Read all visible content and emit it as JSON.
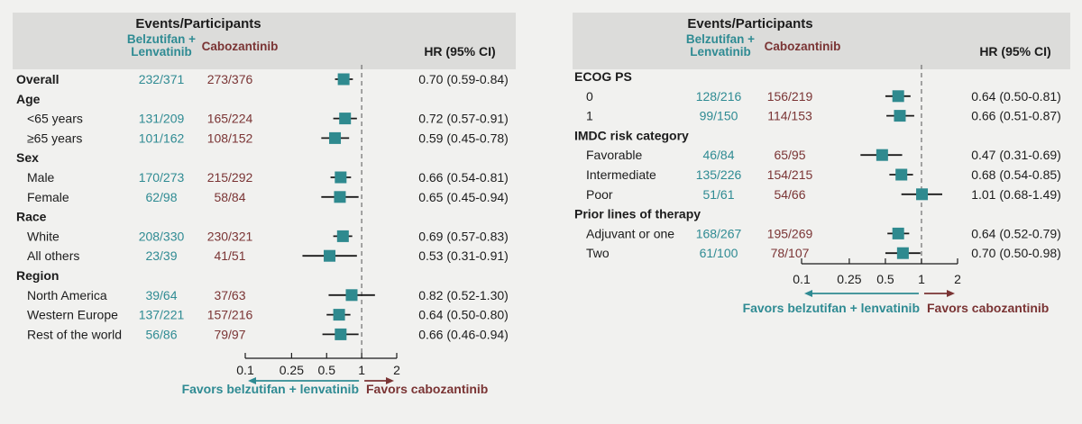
{
  "colors": {
    "belzutifan": "#2f8b93",
    "cabozantinib": "#7a3434",
    "marker": "#2f8a8f",
    "header_band": "#dcdcda",
    "text": "#1c1c1c"
  },
  "chart_data": [
    {
      "type": "forest",
      "header": {
        "events_participants": "Events/Participants",
        "arm1": [
          "Belzutifan +",
          "Lenvatinib"
        ],
        "arm2": "Cabozantinib",
        "hr": "HR (95% CI)"
      },
      "x_scale": "log",
      "xlim": [
        0.1,
        2
      ],
      "ticks": [
        0.1,
        0.25,
        0.5,
        1,
        2
      ],
      "tick_labels": [
        "0.1",
        "0.25",
        "0.5",
        "1",
        "2"
      ],
      "reference_line": 1,
      "favors_left": "Favors belzutifan + lenvatinib",
      "favors_right": "Favors cabozantinib",
      "rows": [
        {
          "kind": "category",
          "label": "Overall",
          "arm1": "232/371",
          "arm2": "273/376",
          "hr": 0.7,
          "lo": 0.59,
          "hi": 0.84,
          "ci": "0.70 (0.59-0.84)"
        },
        {
          "kind": "heading",
          "label": "Age"
        },
        {
          "kind": "sub",
          "label": "<65 years",
          "arm1": "131/209",
          "arm2": "165/224",
          "hr": 0.72,
          "lo": 0.57,
          "hi": 0.91,
          "ci": "0.72 (0.57-0.91)"
        },
        {
          "kind": "sub",
          "label": "≥65 years",
          "arm1": "101/162",
          "arm2": "108/152",
          "hr": 0.59,
          "lo": 0.45,
          "hi": 0.78,
          "ci": "0.59 (0.45-0.78)"
        },
        {
          "kind": "heading",
          "label": "Sex"
        },
        {
          "kind": "sub",
          "label": "Male",
          "arm1": "170/273",
          "arm2": "215/292",
          "hr": 0.66,
          "lo": 0.54,
          "hi": 0.81,
          "ci": "0.66 (0.54-0.81)"
        },
        {
          "kind": "sub",
          "label": "Female",
          "arm1": "62/98",
          "arm2": "58/84",
          "hr": 0.65,
          "lo": 0.45,
          "hi": 0.94,
          "ci": "0.65 (0.45-0.94)"
        },
        {
          "kind": "heading",
          "label": "Race"
        },
        {
          "kind": "sub",
          "label": "White",
          "arm1": "208/330",
          "arm2": "230/321",
          "hr": 0.69,
          "lo": 0.57,
          "hi": 0.83,
          "ci": "0.69 (0.57-0.83)"
        },
        {
          "kind": "sub",
          "label": "All others",
          "arm1": "23/39",
          "arm2": "41/51",
          "hr": 0.53,
          "lo": 0.31,
          "hi": 0.91,
          "ci": "0.53 (0.31-0.91)"
        },
        {
          "kind": "heading",
          "label": "Region"
        },
        {
          "kind": "sub",
          "label": "North America",
          "arm1": "39/64",
          "arm2": "37/63",
          "hr": 0.82,
          "lo": 0.52,
          "hi": 1.3,
          "ci": "0.82 (0.52-1.30)"
        },
        {
          "kind": "sub",
          "label": "Western Europe",
          "arm1": "137/221",
          "arm2": "157/216",
          "hr": 0.64,
          "lo": 0.5,
          "hi": 0.8,
          "ci": "0.64 (0.50-0.80)"
        },
        {
          "kind": "sub",
          "label": "Rest of the world",
          "arm1": "56/86",
          "arm2": "79/97",
          "hr": 0.66,
          "lo": 0.46,
          "hi": 0.94,
          "ci": "0.66 (0.46-0.94)"
        }
      ]
    },
    {
      "type": "forest",
      "header": {
        "events_participants": "Events/Participants",
        "arm1": [
          "Belzutifan +",
          "Lenvatinib"
        ],
        "arm2": "Cabozantinib",
        "hr": "HR (95% CI)"
      },
      "x_scale": "log",
      "xlim": [
        0.1,
        2
      ],
      "ticks": [
        0.1,
        0.25,
        0.5,
        1,
        2
      ],
      "tick_labels": [
        "0.1",
        "0.25",
        "0.5",
        "1",
        "2"
      ],
      "reference_line": 1,
      "favors_left": "Favors belzutifan + lenvatinib",
      "favors_right": "Favors cabozantinib",
      "rows": [
        {
          "kind": "heading",
          "label": "ECOG PS"
        },
        {
          "kind": "sub",
          "label": "0",
          "arm1": "128/216",
          "arm2": "156/219",
          "hr": 0.64,
          "lo": 0.5,
          "hi": 0.81,
          "ci": "0.64 (0.50-0.81)"
        },
        {
          "kind": "sub",
          "label": "1",
          "arm1": "99/150",
          "arm2": "114/153",
          "hr": 0.66,
          "lo": 0.51,
          "hi": 0.87,
          "ci": "0.66 (0.51-0.87)"
        },
        {
          "kind": "heading",
          "label": "IMDC risk category"
        },
        {
          "kind": "sub",
          "label": "Favorable",
          "arm1": "46/84",
          "arm2": "65/95",
          "hr": 0.47,
          "lo": 0.31,
          "hi": 0.69,
          "ci": "0.47 (0.31-0.69)"
        },
        {
          "kind": "sub",
          "label": "Intermediate",
          "arm1": "135/226",
          "arm2": "154/215",
          "hr": 0.68,
          "lo": 0.54,
          "hi": 0.85,
          "ci": "0.68 (0.54-0.85)"
        },
        {
          "kind": "sub",
          "label": "Poor",
          "arm1": "51/61",
          "arm2": "54/66",
          "hr": 1.01,
          "lo": 0.68,
          "hi": 1.49,
          "ci": "1.01 (0.68-1.49)"
        },
        {
          "kind": "heading",
          "label": "Prior lines of therapy"
        },
        {
          "kind": "sub",
          "label": "Adjuvant or one",
          "arm1": "168/267",
          "arm2": "195/269",
          "hr": 0.64,
          "lo": 0.52,
          "hi": 0.79,
          "ci": "0.64 (0.52-0.79)"
        },
        {
          "kind": "sub",
          "label": "Two",
          "arm1": "61/100",
          "arm2": "78/107",
          "hr": 0.7,
          "lo": 0.5,
          "hi": 0.98,
          "ci": "0.70 (0.50-0.98)"
        }
      ]
    }
  ]
}
